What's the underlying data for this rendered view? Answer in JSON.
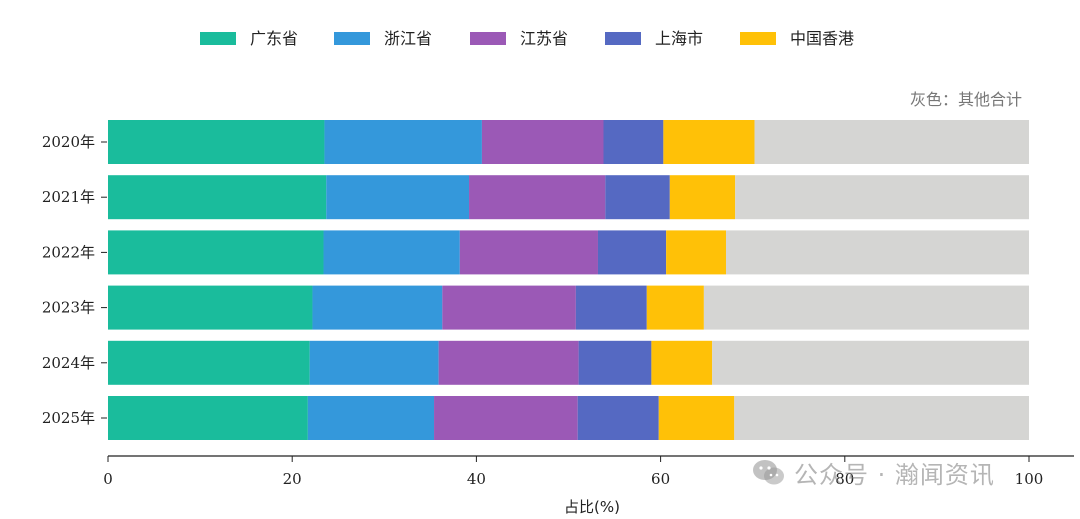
{
  "chart_data": {
    "type": "bar",
    "orientation": "horizontal",
    "stacked": true,
    "categories": [
      "2020年",
      "2021年",
      "2022年",
      "2023年",
      "2024年",
      "2025年"
    ],
    "series": [
      {
        "name": "广东省",
        "color": "#1ABC9C",
        "values": [
          23.5,
          23.7,
          23.4,
          22.2,
          21.9,
          21.7
        ]
      },
      {
        "name": "浙江省",
        "color": "#3498DB",
        "values": [
          17.1,
          15.5,
          14.8,
          14.1,
          14.0,
          13.7
        ]
      },
      {
        "name": "江苏省",
        "color": "#9B59B6",
        "values": [
          13.2,
          14.8,
          15.0,
          14.5,
          15.2,
          15.6
        ]
      },
      {
        "name": "上海市",
        "color": "#5569C2",
        "values": [
          6.5,
          7.0,
          7.4,
          7.7,
          7.9,
          8.8
        ]
      },
      {
        "name": "中国香港",
        "color": "#FFC107",
        "values": [
          9.9,
          7.1,
          6.5,
          6.2,
          6.6,
          8.2
        ]
      },
      {
        "name": "其他合计",
        "color": "#D5D5D3",
        "values": [
          29.8,
          31.9,
          32.9,
          35.3,
          34.4,
          32.0
        ]
      }
    ],
    "legend_count": 5,
    "xlabel": "占比(%)",
    "ylabel": "",
    "xlim": [
      0,
      100
    ],
    "xticks": [
      0,
      20,
      40,
      60,
      80,
      100
    ],
    "legend_position": "top-center",
    "note": "灰色：其他合计",
    "grid": false
  },
  "watermark": {
    "text": "公众号 · 瀚闻资讯",
    "icon": "wechat-icon"
  }
}
